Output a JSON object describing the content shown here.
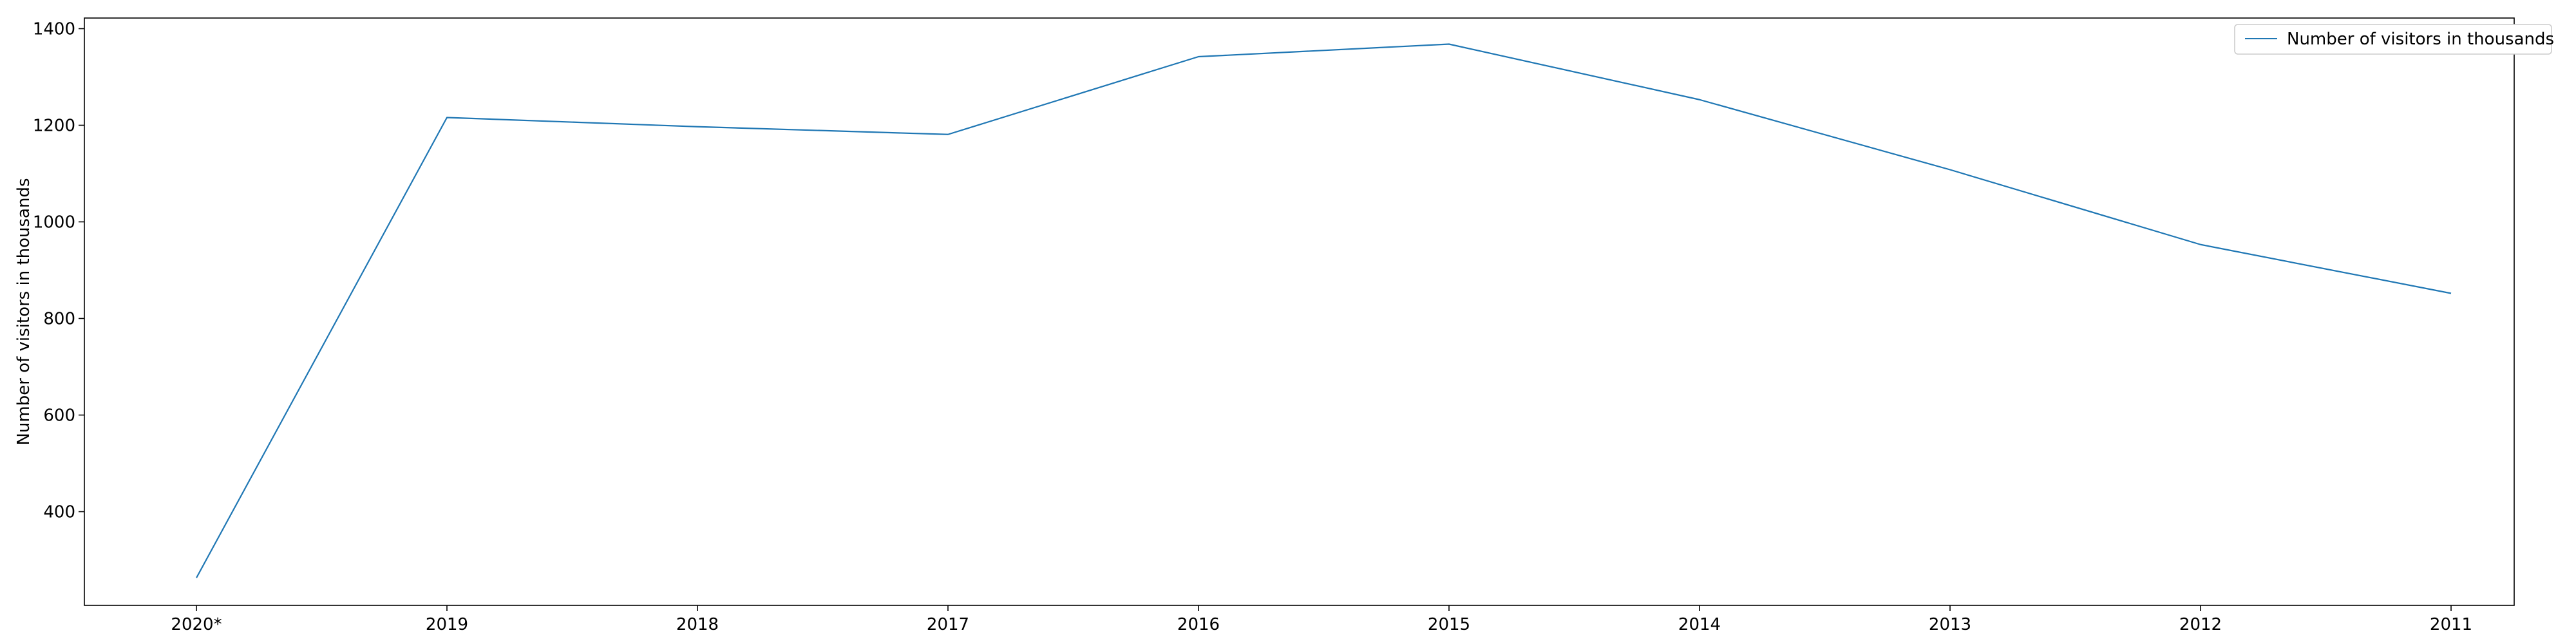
{
  "chart_data": {
    "type": "line",
    "categories": [
      "2020*",
      "2019",
      "2018",
      "2017",
      "2016",
      "2015",
      "2014",
      "2013",
      "2012",
      "2011"
    ],
    "series": [
      {
        "name": "Number of visitors in thousands",
        "values": [
          263,
          1216,
          1197,
          1181,
          1342,
          1368,
          1253,
          1108,
          953,
          852
        ],
        "color": "#1f77b4"
      }
    ],
    "title": "",
    "xlabel": "",
    "ylabel": "Number of visitors in thousands",
    "ylim": [
      206,
      1422
    ],
    "yticks": [
      400,
      600,
      800,
      1000,
      1200,
      1400
    ],
    "grid": false,
    "legend_position": "top-right"
  }
}
